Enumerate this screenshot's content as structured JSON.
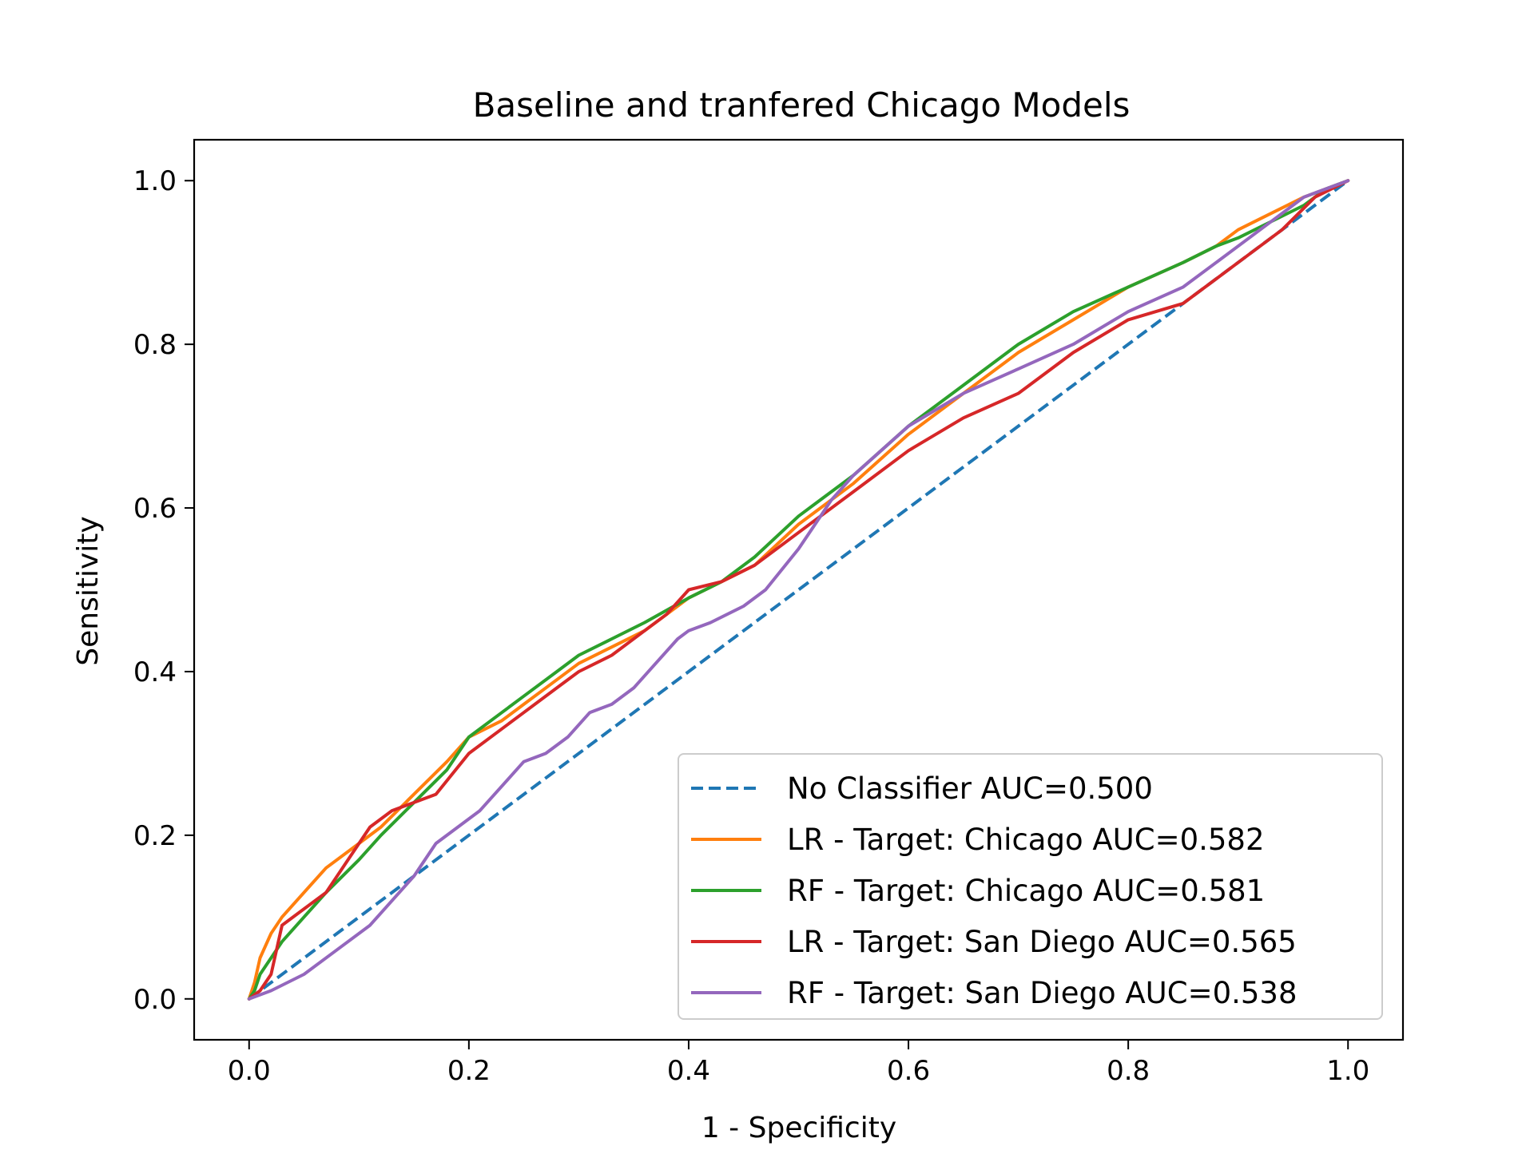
{
  "chart_data": {
    "type": "line",
    "title": "Baseline and tranfered Chicago Models",
    "xlabel": "1 - Specificity",
    "ylabel": "Sensitivity",
    "xlim": [
      -0.05,
      1.05
    ],
    "ylim": [
      -0.05,
      1.05
    ],
    "xticks": [
      "0.0",
      "0.2",
      "0.4",
      "0.6",
      "0.8",
      "1.0"
    ],
    "yticks": [
      "0.0",
      "0.2",
      "0.4",
      "0.6",
      "0.8",
      "1.0"
    ],
    "grid": false,
    "legend_position": "lower-right",
    "series": [
      {
        "name": "No Classifier AUC=0.500",
        "color": "#1f77b4",
        "dashed": true,
        "x": [
          0.0,
          1.0
        ],
        "y": [
          0.0,
          1.0
        ]
      },
      {
        "name": "LR - Target: Chicago AUC=0.582",
        "color": "#ff7f0e",
        "dashed": false,
        "x": [
          0.0,
          0.005,
          0.01,
          0.02,
          0.03,
          0.05,
          0.07,
          0.1,
          0.12,
          0.15,
          0.18,
          0.2,
          0.23,
          0.25,
          0.28,
          0.3,
          0.33,
          0.36,
          0.4,
          0.43,
          0.46,
          0.5,
          0.55,
          0.6,
          0.65,
          0.7,
          0.75,
          0.8,
          0.85,
          0.88,
          0.9,
          0.93,
          0.96,
          0.98,
          1.0
        ],
        "y": [
          0.0,
          0.02,
          0.05,
          0.08,
          0.1,
          0.13,
          0.16,
          0.19,
          0.21,
          0.25,
          0.29,
          0.32,
          0.34,
          0.36,
          0.39,
          0.41,
          0.43,
          0.45,
          0.49,
          0.51,
          0.53,
          0.58,
          0.63,
          0.69,
          0.74,
          0.79,
          0.83,
          0.87,
          0.9,
          0.92,
          0.94,
          0.96,
          0.98,
          0.99,
          1.0
        ]
      },
      {
        "name": "RF - Target: Chicago AUC=0.581",
        "color": "#2ca02c",
        "dashed": false,
        "x": [
          0.0,
          0.005,
          0.01,
          0.02,
          0.03,
          0.05,
          0.07,
          0.1,
          0.12,
          0.15,
          0.18,
          0.2,
          0.23,
          0.25,
          0.28,
          0.3,
          0.33,
          0.36,
          0.4,
          0.43,
          0.46,
          0.5,
          0.55,
          0.6,
          0.65,
          0.7,
          0.75,
          0.8,
          0.85,
          0.88,
          0.9,
          0.93,
          0.96,
          0.98,
          1.0
        ],
        "y": [
          0.0,
          0.01,
          0.03,
          0.05,
          0.07,
          0.1,
          0.13,
          0.17,
          0.2,
          0.24,
          0.28,
          0.32,
          0.35,
          0.37,
          0.4,
          0.42,
          0.44,
          0.46,
          0.49,
          0.51,
          0.54,
          0.59,
          0.64,
          0.7,
          0.75,
          0.8,
          0.84,
          0.87,
          0.9,
          0.92,
          0.93,
          0.95,
          0.97,
          0.99,
          1.0
        ]
      },
      {
        "name": "LR - Target: San Diego AUC=0.565",
        "color": "#d62728",
        "dashed": false,
        "x": [
          0.0,
          0.01,
          0.02,
          0.03,
          0.05,
          0.07,
          0.09,
          0.11,
          0.13,
          0.15,
          0.17,
          0.2,
          0.23,
          0.25,
          0.28,
          0.3,
          0.33,
          0.36,
          0.38,
          0.4,
          0.43,
          0.46,
          0.5,
          0.55,
          0.6,
          0.65,
          0.7,
          0.75,
          0.8,
          0.85,
          0.9,
          0.94,
          0.97,
          1.0
        ],
        "y": [
          0.0,
          0.01,
          0.03,
          0.09,
          0.11,
          0.13,
          0.17,
          0.21,
          0.23,
          0.24,
          0.25,
          0.3,
          0.33,
          0.35,
          0.38,
          0.4,
          0.42,
          0.45,
          0.47,
          0.5,
          0.51,
          0.53,
          0.57,
          0.62,
          0.67,
          0.71,
          0.74,
          0.79,
          0.83,
          0.85,
          0.9,
          0.94,
          0.98,
          1.0
        ]
      },
      {
        "name": "RF - Target: San Diego AUC=0.538",
        "color": "#9467bd",
        "dashed": false,
        "x": [
          0.0,
          0.02,
          0.05,
          0.08,
          0.11,
          0.13,
          0.15,
          0.17,
          0.19,
          0.21,
          0.23,
          0.25,
          0.27,
          0.29,
          0.31,
          0.33,
          0.35,
          0.37,
          0.39,
          0.4,
          0.42,
          0.45,
          0.47,
          0.5,
          0.53,
          0.55,
          0.6,
          0.65,
          0.7,
          0.75,
          0.8,
          0.85,
          0.88,
          0.92,
          0.96,
          1.0
        ],
        "y": [
          0.0,
          0.01,
          0.03,
          0.06,
          0.09,
          0.12,
          0.15,
          0.19,
          0.21,
          0.23,
          0.26,
          0.29,
          0.3,
          0.32,
          0.35,
          0.36,
          0.38,
          0.41,
          0.44,
          0.45,
          0.46,
          0.48,
          0.5,
          0.55,
          0.61,
          0.64,
          0.7,
          0.74,
          0.77,
          0.8,
          0.84,
          0.87,
          0.9,
          0.94,
          0.98,
          1.0
        ]
      }
    ]
  }
}
